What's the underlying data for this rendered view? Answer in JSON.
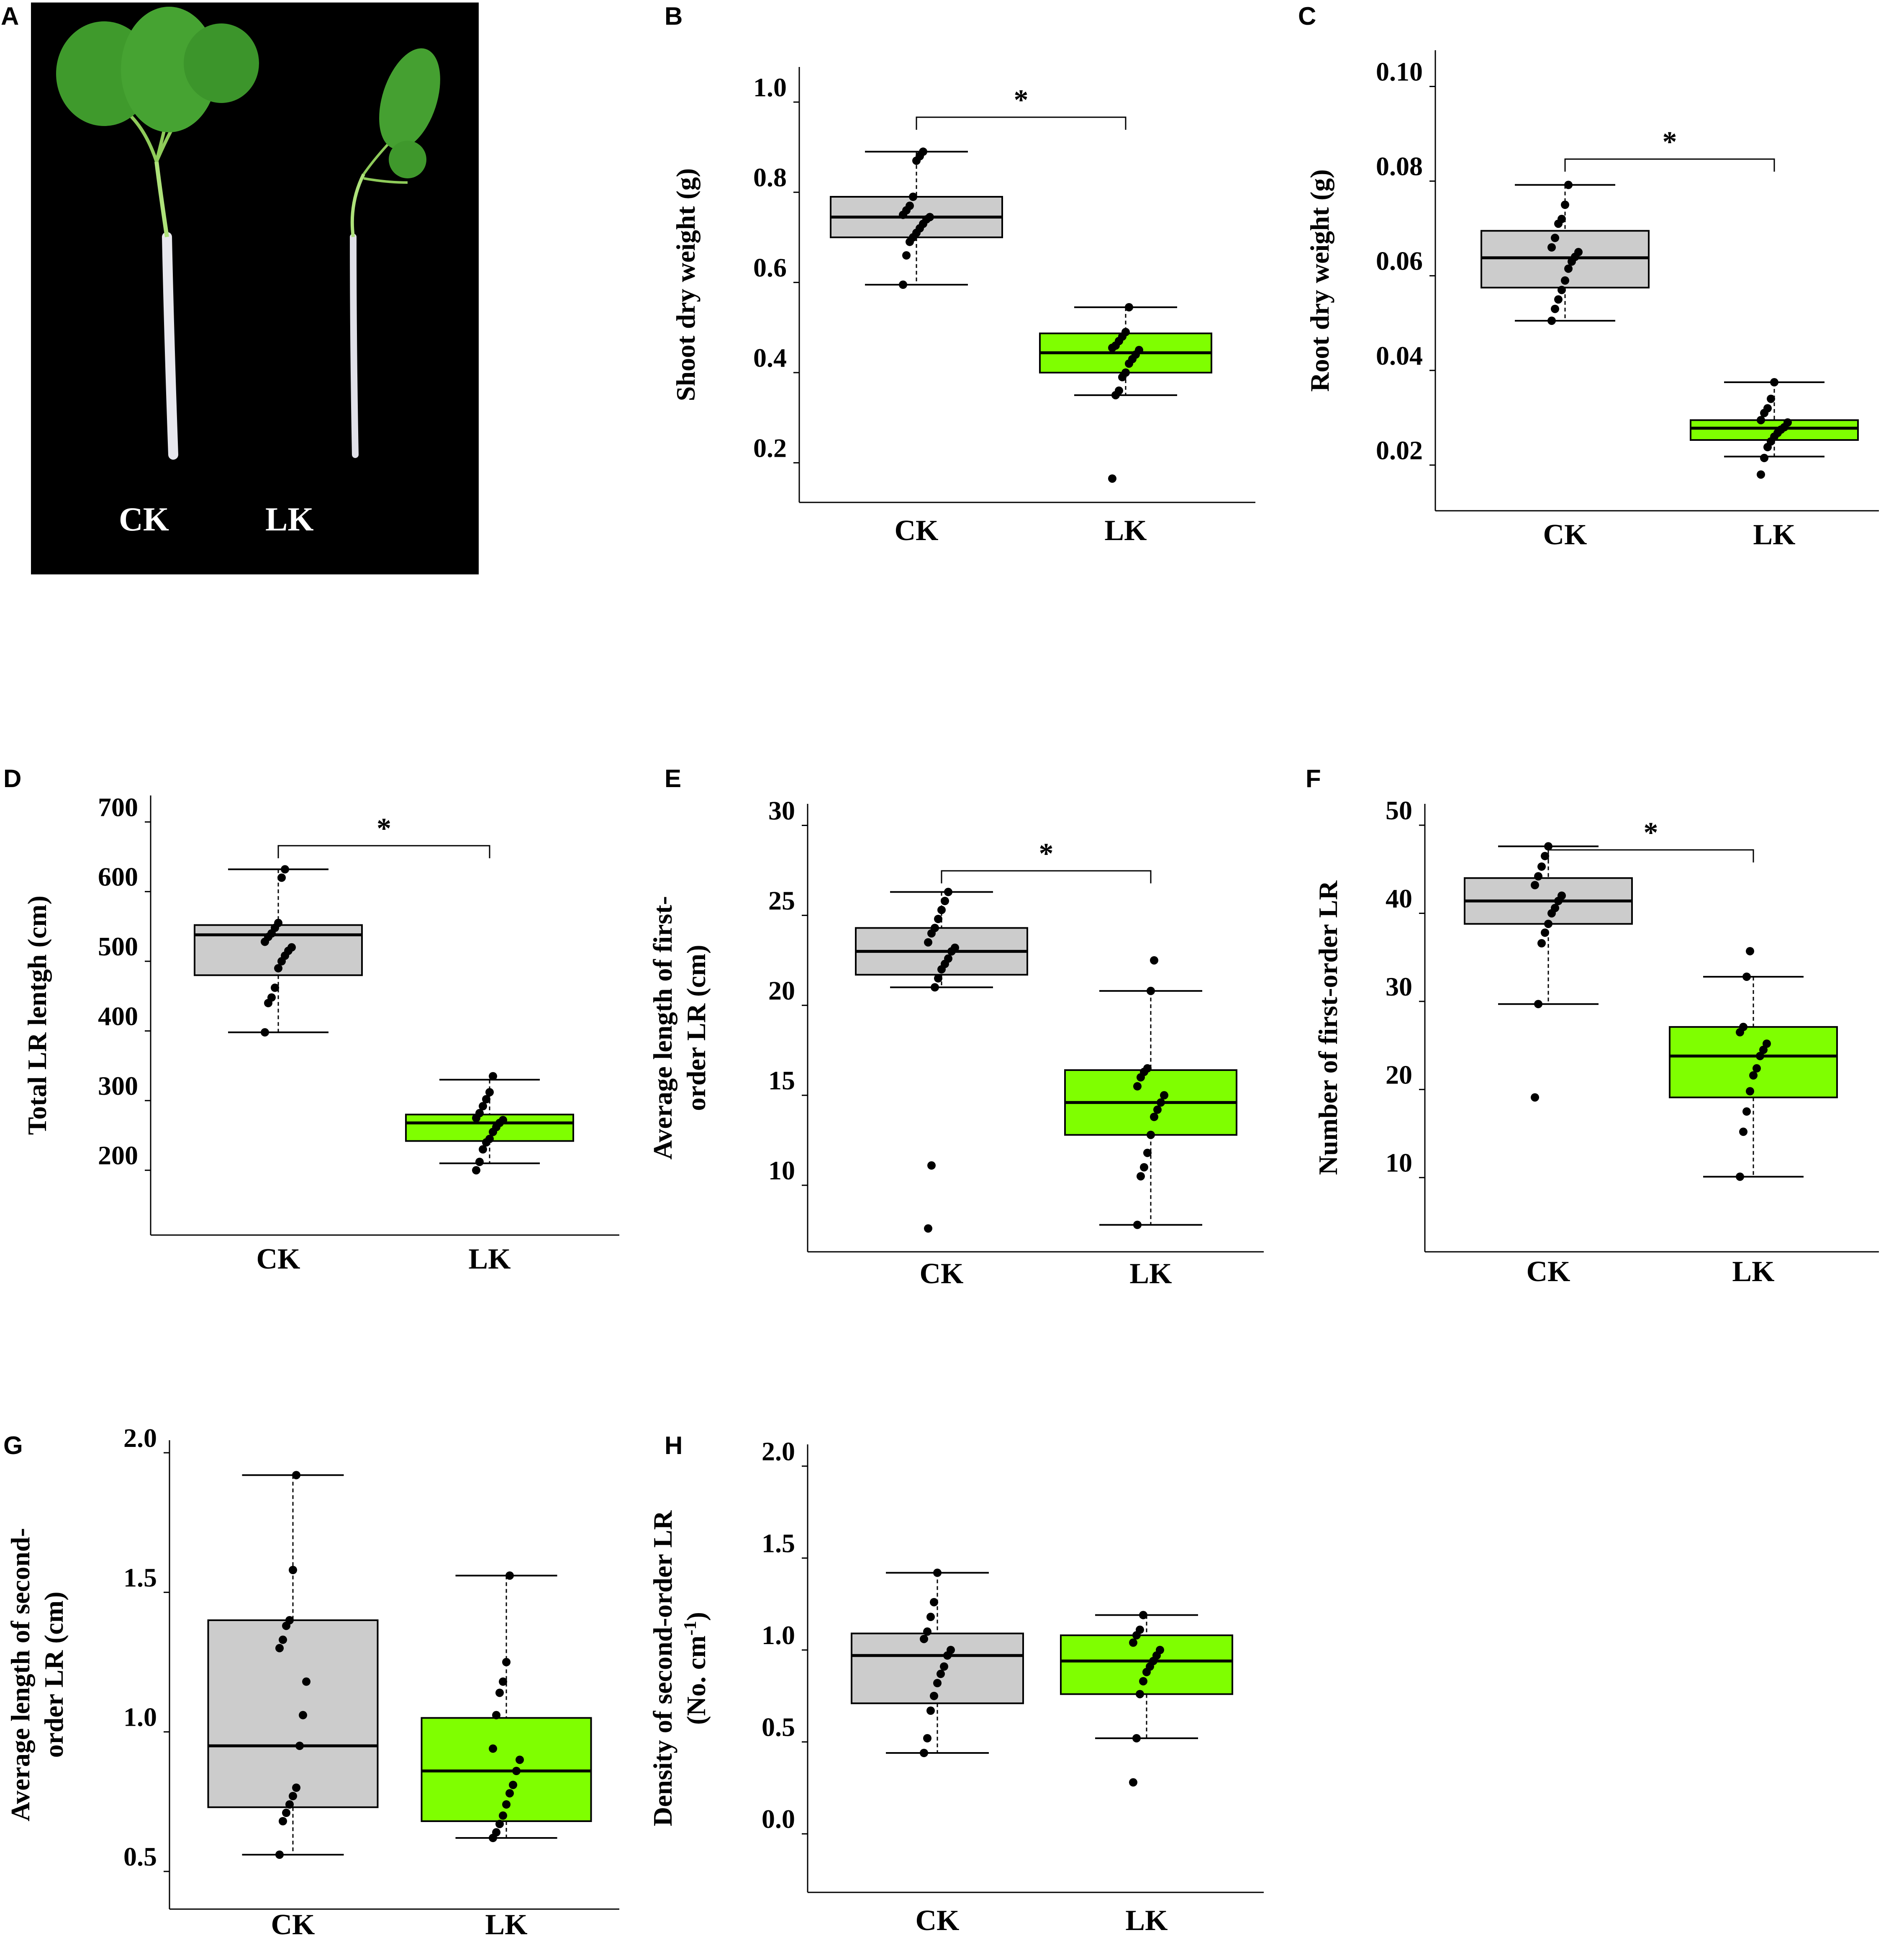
{
  "panels": {
    "A": {
      "letter": "A",
      "labels": [
        "CK",
        "LK"
      ]
    },
    "B": {
      "letter": "B"
    },
    "C": {
      "letter": "C"
    },
    "D": {
      "letter": "D"
    },
    "E": {
      "letter": "E"
    },
    "F": {
      "letter": "F"
    },
    "G": {
      "letter": "G"
    },
    "H": {
      "letter": "H"
    }
  },
  "colors": {
    "ck_box": "#cccccc",
    "lk_box": "#7fff00",
    "photo_background": "#000000"
  },
  "chart_data": [
    {
      "panel": "B",
      "type": "box",
      "ylabel": "Shoot dry weight (g)",
      "categories": [
        "CK",
        "LK"
      ],
      "yticks": [
        0.2,
        0.4,
        0.6,
        0.8,
        1.0
      ],
      "ytick_labels": [
        "0.2",
        "0.4",
        "0.6",
        "0.8",
        "1.0"
      ],
      "ylim": [
        0.14,
        1.05
      ],
      "significance": "*",
      "boxes": [
        {
          "category": "CK",
          "q1": 0.7,
          "median": 0.745,
          "q3": 0.79,
          "whisker_low": 0.595,
          "whisker_high": 0.89,
          "points": [
            0.595,
            0.66,
            0.69,
            0.7,
            0.71,
            0.72,
            0.73,
            0.74,
            0.745,
            0.75,
            0.76,
            0.77,
            0.79,
            0.87,
            0.88,
            0.89
          ]
        },
        {
          "category": "LK",
          "q1": 0.4,
          "median": 0.444,
          "q3": 0.487,
          "whisker_low": 0.35,
          "whisker_high": 0.545,
          "points": [
            0.165,
            0.35,
            0.36,
            0.39,
            0.4,
            0.42,
            0.43,
            0.44,
            0.45,
            0.455,
            0.46,
            0.47,
            0.48,
            0.49,
            0.545
          ]
        }
      ]
    },
    {
      "panel": "C",
      "type": "box",
      "ylabel": "Root dry weight (g)",
      "categories": [
        "CK",
        "LK"
      ],
      "yticks": [
        0.02,
        0.04,
        0.06,
        0.08,
        0.1
      ],
      "ytick_labels": [
        "0.02",
        "0.04",
        "0.06",
        "0.08",
        "0.10"
      ],
      "ylim": [
        0.013,
        0.105
      ],
      "significance": "*",
      "boxes": [
        {
          "category": "CK",
          "q1": 0.0575,
          "median": 0.0638,
          "q3": 0.0695,
          "whisker_low": 0.0505,
          "whisker_high": 0.0792,
          "points": [
            0.0505,
            0.053,
            0.055,
            0.057,
            0.059,
            0.0615,
            0.063,
            0.064,
            0.065,
            0.066,
            0.068,
            0.071,
            0.072,
            0.075,
            0.0792
          ]
        },
        {
          "category": "LK",
          "q1": 0.0253,
          "median": 0.0278,
          "q3": 0.0295,
          "whisker_low": 0.0218,
          "whisker_high": 0.0375,
          "points": [
            0.018,
            0.0215,
            0.0238,
            0.025,
            0.026,
            0.0268,
            0.0275,
            0.028,
            0.029,
            0.0295,
            0.031,
            0.032,
            0.034,
            0.0375
          ]
        }
      ]
    },
    {
      "panel": "D",
      "type": "box",
      "ylabel": "Total LR lentgh (cm)",
      "categories": [
        "CK",
        "LK"
      ],
      "yticks": [
        200,
        300,
        400,
        500,
        600,
        700
      ],
      "ytick_labels": [
        "200",
        "300",
        "400",
        "500",
        "600",
        "700"
      ],
      "ylim": [
        125,
        720
      ],
      "significance": "*",
      "boxes": [
        {
          "category": "CK",
          "q1": 480,
          "median": 538,
          "q3": 552,
          "whisker_low": 398,
          "whisker_high": 632,
          "points": [
            398,
            440,
            448,
            462,
            490,
            500,
            508,
            515,
            520,
            528,
            535,
            540,
            548,
            555,
            620,
            632
          ]
        },
        {
          "category": "LK",
          "q1": 242,
          "median": 268,
          "q3": 280,
          "whisker_low": 210,
          "whisker_high": 330,
          "points": [
            200,
            212,
            230,
            240,
            245,
            255,
            262,
            268,
            272,
            275,
            282,
            292,
            302,
            312,
            335
          ]
        }
      ]
    },
    {
      "panel": "E",
      "type": "box",
      "ylabel": "Average length of first-order LR (cm)",
      "categories": [
        "CK",
        "LK"
      ],
      "yticks": [
        10,
        15,
        20,
        25,
        30
      ],
      "ytick_labels": [
        "10",
        "15",
        "20",
        "25",
        "30"
      ],
      "ylim": [
        7,
        30.5
      ],
      "significance": "*",
      "boxes": [
        {
          "category": "CK",
          "q1": 21.7,
          "median": 23.0,
          "q3": 24.3,
          "whisker_low": 21.0,
          "whisker_high": 26.3,
          "points": [
            7.6,
            11.1,
            21.0,
            21.5,
            22.0,
            22.3,
            22.6,
            23.0,
            23.2,
            23.5,
            24.0,
            24.3,
            24.8,
            25.3,
            25.8,
            26.3
          ]
        },
        {
          "category": "LK",
          "q1": 12.8,
          "median": 14.6,
          "q3": 16.4,
          "whisker_low": 7.8,
          "whisker_high": 20.8,
          "points": [
            7.8,
            10.5,
            11.0,
            11.8,
            12.8,
            13.8,
            14.2,
            14.6,
            15.0,
            15.5,
            16.0,
            16.3,
            16.5,
            20.8,
            22.5
          ]
        }
      ]
    },
    {
      "panel": "F",
      "type": "box",
      "ylabel": "Number of first-order LR",
      "categories": [
        "CK",
        "LK"
      ],
      "yticks": [
        10,
        20,
        30,
        40,
        50
      ],
      "ytick_labels": [
        "10",
        "20",
        "30",
        "40",
        "50"
      ],
      "ylim": [
        3,
        51
      ],
      "significance": "*",
      "boxes": [
        {
          "category": "CK",
          "q1": 38.8,
          "median": 41.4,
          "q3": 44.0,
          "whisker_low": 29.7,
          "whisker_high": 47.6,
          "points": [
            19.1,
            29.7,
            36.6,
            37.8,
            38.8,
            40.0,
            40.6,
            41.4,
            42.0,
            43.2,
            44.2,
            45.3,
            46.5,
            47.6
          ]
        },
        {
          "category": "LK",
          "q1": 19.1,
          "median": 23.8,
          "q3": 27.1,
          "whisker_low": 10.1,
          "whisker_high": 32.8,
          "points": [
            10.1,
            15.2,
            17.5,
            19.8,
            21.6,
            22.4,
            23.8,
            24.5,
            25.2,
            26.5,
            27.1,
            32.8,
            35.7
          ]
        }
      ]
    },
    {
      "panel": "G",
      "type": "box",
      "ylabel": "Average length of second-order LR (cm)",
      "categories": [
        "CK",
        "LK"
      ],
      "yticks": [
        0.5,
        1.0,
        1.5,
        2.0
      ],
      "ytick_labels": [
        "0.5",
        "1.0",
        "1.5",
        "2.0"
      ],
      "ylim": [
        0.41,
        2.0
      ],
      "significance": "",
      "boxes": [
        {
          "category": "CK",
          "q1": 0.73,
          "median": 0.95,
          "q3": 1.4,
          "whisker_low": 0.56,
          "whisker_high": 1.92,
          "points": [
            0.56,
            0.68,
            0.71,
            0.74,
            0.77,
            0.8,
            0.95,
            1.06,
            1.18,
            1.3,
            1.33,
            1.38,
            1.4,
            1.58,
            1.92
          ]
        },
        {
          "category": "LK",
          "q1": 0.68,
          "median": 0.86,
          "q3": 1.05,
          "whisker_low": 0.62,
          "whisker_high": 1.56,
          "points": [
            0.62,
            0.64,
            0.67,
            0.7,
            0.74,
            0.78,
            0.81,
            0.86,
            0.9,
            0.94,
            1.06,
            1.14,
            1.18,
            1.25,
            1.56
          ]
        }
      ]
    },
    {
      "panel": "H",
      "type": "box",
      "ylabel": "Density of second-order LR (No. cm-1)",
      "categories": [
        "CK",
        "LK"
      ],
      "yticks": [
        0.0,
        0.5,
        1.0,
        1.5,
        2.0
      ],
      "ytick_labels": [
        "0.0",
        "0.5",
        "1.0",
        "1.5",
        "2.0"
      ],
      "ylim": [
        -0.25,
        2.05
      ],
      "significance": "",
      "boxes": [
        {
          "category": "CK",
          "q1": 0.71,
          "median": 0.97,
          "q3": 1.09,
          "whisker_low": 0.44,
          "whisker_high": 1.42,
          "points": [
            0.44,
            0.52,
            0.67,
            0.75,
            0.82,
            0.87,
            0.91,
            0.97,
            1.0,
            1.06,
            1.1,
            1.18,
            1.26,
            1.42
          ]
        },
        {
          "category": "LK",
          "q1": 0.76,
          "median": 0.94,
          "q3": 1.08,
          "whisker_low": 0.52,
          "whisker_high": 1.19,
          "points": [
            0.28,
            0.52,
            0.76,
            0.83,
            0.88,
            0.91,
            0.94,
            0.97,
            1.0,
            1.04,
            1.08,
            1.11,
            1.19
          ]
        }
      ]
    }
  ]
}
